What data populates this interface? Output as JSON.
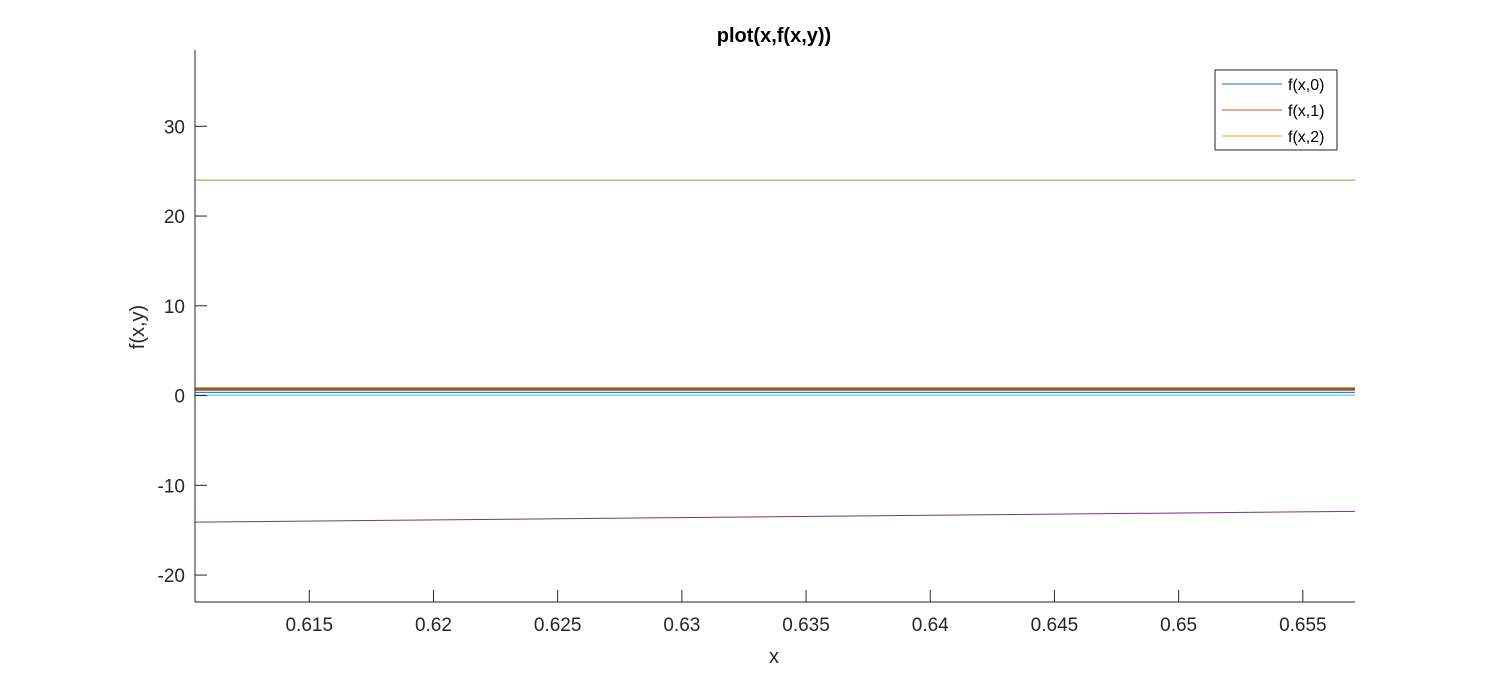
{
  "chart_data": {
    "type": "line",
    "title": "plot(x,f(x,y))",
    "xlabel": "x",
    "ylabel": "f(x,y)",
    "xlim": [
      0.6104,
      0.6571
    ],
    "ylim": [
      -23,
      38.5
    ],
    "xticks": [
      0.615,
      0.62,
      0.625,
      0.63,
      0.635,
      0.64,
      0.645,
      0.65,
      0.655
    ],
    "xtick_labels": [
      "0.615",
      "0.62",
      "0.625",
      "0.63",
      "0.635",
      "0.64",
      "0.645",
      "0.65",
      "0.655"
    ],
    "yticks": [
      -20,
      -10,
      0,
      10,
      20,
      30
    ],
    "ytick_labels": [
      "-20",
      "-10",
      "0",
      "10",
      "20",
      "30"
    ],
    "grid": false,
    "legend_position": "top-right",
    "series": [
      {
        "name": "f(x,0)",
        "color": "#0072BD",
        "x": [
          0.6104,
          0.6571
        ],
        "y": [
          0.35,
          0.35
        ]
      },
      {
        "name": "f(x,1)",
        "color": "#D95319",
        "x": [
          0.6104,
          0.6571
        ],
        "y": [
          0.7,
          0.7
        ]
      },
      {
        "name": "f(x,2)",
        "color": "#EDB120",
        "x": [
          0.6104,
          0.6571
        ],
        "y": [
          0.9,
          0.9
        ]
      },
      {
        "color": "#7E2F8E",
        "x": [
          0.6104,
          0.6571
        ],
        "y": [
          -14.1,
          -12.9
        ]
      },
      {
        "color": "#77AC30",
        "x": [
          0.6104,
          0.6571
        ],
        "y": [
          24.0,
          24.0
        ]
      },
      {
        "color": "#4DBEEE",
        "x": [
          0.6104,
          0.6571
        ],
        "y": [
          0.05,
          0.05
        ]
      },
      {
        "color": "#A2142F",
        "x": [
          0.6104,
          0.6571
        ],
        "y": [
          0.6,
          0.6
        ]
      },
      {
        "color": "#1B7A3A",
        "x": [
          0.6104,
          0.6571
        ],
        "y": [
          0.8,
          0.8
        ]
      }
    ]
  }
}
